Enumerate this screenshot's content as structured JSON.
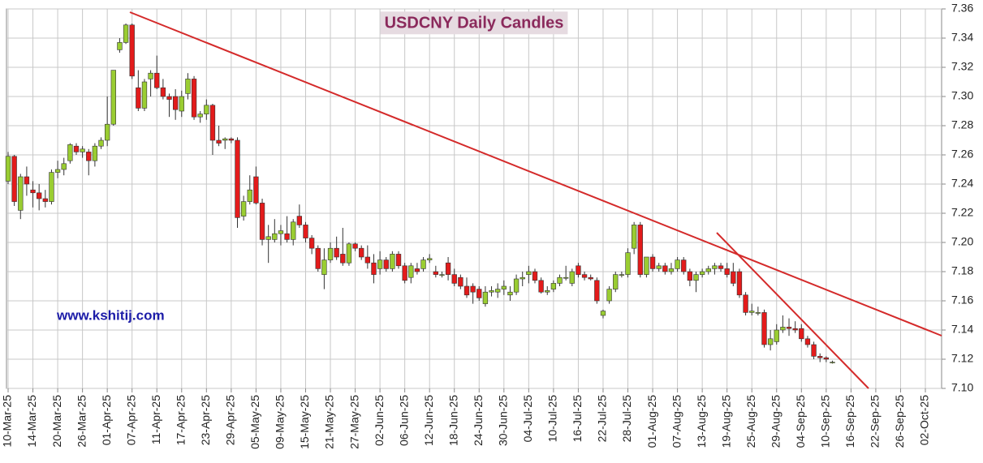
{
  "chart_data": {
    "type": "candlestick",
    "title": "USDCNY Daily Candles",
    "watermark": "www.kshitij.com",
    "up_color": "#9acd32",
    "down_color": "#e31b1b",
    "outline_color": "#333333",
    "grid": true,
    "ylim": [
      7.1,
      7.36
    ],
    "yticks": [
      {
        "value": 7.1,
        "label": "7.10"
      },
      7.12,
      7.14,
      7.16,
      7.18,
      {
        "value": 7.2,
        "label": "7.20"
      },
      7.22,
      7.24,
      7.26,
      7.28,
      {
        "value": 7.3,
        "label": "7.30"
      },
      7.32,
      7.34,
      7.36
    ],
    "categories": [
      "10-Mar-25",
      null,
      null,
      null,
      "14-Mar-25",
      null,
      null,
      null,
      "20-Mar-25",
      null,
      null,
      null,
      "26-Mar-25",
      null,
      null,
      null,
      "01-Apr-25",
      null,
      null,
      null,
      "07-Apr-25",
      null,
      null,
      null,
      "11-Apr-25",
      null,
      null,
      null,
      "17-Apr-25",
      null,
      null,
      null,
      "23-Apr-25",
      null,
      null,
      null,
      "29-Apr-25",
      null,
      null,
      null,
      "05-May-25",
      null,
      null,
      null,
      "09-May-25",
      null,
      null,
      null,
      "15-May-25",
      null,
      null,
      null,
      "21-May-25",
      null,
      null,
      null,
      "27-May-25",
      null,
      null,
      null,
      "02-Jun-25",
      null,
      null,
      null,
      "06-Jun-25",
      null,
      null,
      null,
      "12-Jun-25",
      null,
      null,
      null,
      "18-Jun-25",
      null,
      null,
      null,
      "24-Jun-25",
      null,
      null,
      null,
      "30-Jun-25",
      null,
      null,
      null,
      "04-Jul-25",
      null,
      null,
      null,
      "10-Jul-25",
      null,
      null,
      null,
      "16-Jul-25",
      null,
      null,
      null,
      "22-Jul-25",
      null,
      null,
      null,
      "28-Jul-25",
      null,
      null,
      null,
      "01-Aug-25",
      null,
      null,
      null,
      "07-Aug-25",
      null,
      null,
      null,
      "13-Aug-25",
      null,
      null,
      null,
      "19-Aug-25",
      null,
      null,
      null,
      "25-Aug-25",
      null,
      null,
      null,
      "29-Aug-25",
      null,
      null,
      null,
      "04-Sep-25",
      null,
      null,
      null,
      "10-Sep-25",
      null,
      null,
      null,
      "16-Sep-25",
      null,
      null,
      null,
      "22-Sep-25",
      null,
      null,
      null,
      "26-Sep-25",
      null,
      null,
      null,
      "02-Oct-25"
    ],
    "open": [
      7.242,
      7.259,
      7.222,
      7.245,
      7.236,
      7.234,
      7.23,
      7.228,
      7.248,
      7.25,
      7.256,
      7.266,
      7.262,
      7.262,
      7.256,
      7.266,
      7.27,
      7.281,
      7.332,
      7.337,
      7.349,
      7.306,
      7.292,
      7.312,
      7.316,
      7.306,
      7.3,
      7.3,
      7.29,
      7.302,
      7.312,
      7.286,
      7.288,
      7.294,
      7.27,
      7.27,
      7.271,
      7.27,
      7.218,
      7.228,
      7.245,
      7.227,
      7.202,
      7.202,
      7.206,
      7.206,
      7.202,
      7.218,
      7.212,
      7.203,
      7.196,
      7.178,
      7.188,
      7.196,
      7.192,
      7.186,
      7.199,
      7.196,
      7.19,
      7.186,
      7.182,
      7.188,
      7.182,
      7.192,
      7.184,
      7.176,
      7.182,
      7.182,
      7.188,
      7.18,
      7.178,
      7.186,
      7.178,
      7.176,
      7.17,
      7.17,
      7.168,
      7.158,
      7.166,
      7.166,
      7.168,
      7.164,
      7.166,
      7.175,
      7.178,
      7.18,
      7.174,
      7.166,
      7.168,
      7.172,
      7.176,
      7.172,
      7.184,
      7.178,
      7.176,
      7.174,
      7.15,
      7.16,
      7.168,
      7.178,
      7.178,
      7.196,
      7.212,
      7.178,
      7.19,
      7.182,
      7.184,
      7.18,
      7.182,
      7.188,
      7.18,
      7.174,
      7.178,
      7.18,
      7.182,
      7.184,
      7.182,
      7.18,
      7.18,
      7.164,
      7.152,
      7.152,
      7.152,
      7.13,
      7.132,
      7.14,
      7.142,
      7.141,
      7.141,
      7.134,
      7.13,
      7.122,
      7.121,
      7.118,
      null,
      null,
      null,
      null,
      null,
      null,
      null,
      null,
      null,
      null,
      null,
      null,
      null,
      null,
      null
    ],
    "high": [
      7.262,
      7.26,
      7.247,
      7.252,
      7.242,
      7.24,
      7.236,
      7.25,
      7.256,
      7.258,
      7.268,
      7.268,
      7.266,
      7.264,
      7.268,
      7.272,
      7.3,
      7.318,
      7.34,
      7.35,
      7.35,
      7.318,
      7.312,
      7.318,
      7.328,
      7.312,
      7.302,
      7.305,
      7.304,
      7.316,
      7.314,
      7.29,
      7.298,
      7.295,
      7.28,
      7.272,
      7.272,
      7.272,
      7.232,
      7.246,
      7.252,
      7.23,
      7.212,
      7.216,
      7.212,
      7.218,
      7.216,
      7.226,
      7.214,
      7.205,
      7.198,
      7.196,
      7.2,
      7.204,
      7.21,
      7.2,
      7.2,
      7.198,
      7.198,
      7.192,
      7.194,
      7.19,
      7.194,
      7.194,
      7.186,
      7.186,
      7.186,
      7.19,
      7.192,
      7.184,
      7.18,
      7.19,
      7.182,
      7.178,
      7.176,
      7.172,
      7.17,
      7.17,
      7.17,
      7.172,
      7.174,
      7.17,
      7.178,
      7.18,
      7.184,
      7.182,
      7.176,
      7.17,
      7.174,
      7.178,
      7.184,
      7.182,
      7.186,
      7.18,
      7.178,
      7.176,
      7.154,
      7.17,
      7.18,
      7.18,
      7.196,
      7.214,
      7.214,
      7.19,
      7.192,
      7.186,
      7.186,
      7.186,
      7.19,
      7.19,
      7.182,
      7.18,
      7.182,
      7.184,
      7.186,
      7.186,
      7.186,
      7.186,
      7.182,
      7.166,
      7.158,
      7.156,
      7.154,
      7.14,
      7.144,
      7.15,
      7.148,
      7.146,
      7.144,
      7.136,
      7.132,
      7.124,
      7.122,
      7.119,
      null,
      null,
      null,
      null,
      null,
      null,
      null,
      null,
      null,
      null,
      null,
      null,
      null,
      null,
      null
    ],
    "low": [
      7.24,
      7.225,
      7.216,
      7.232,
      7.224,
      7.222,
      7.224,
      7.226,
      7.244,
      7.246,
      7.254,
      7.26,
      7.258,
      7.246,
      7.252,
      7.264,
      7.266,
      7.28,
      7.33,
      7.336,
      7.312,
      7.29,
      7.29,
      7.3,
      7.305,
      7.298,
      7.286,
      7.284,
      7.286,
      7.298,
      7.284,
      7.282,
      7.284,
      7.26,
      7.266,
      7.264,
      7.268,
      7.21,
      7.215,
      7.226,
      7.226,
      7.198,
      7.186,
      7.2,
      7.198,
      7.2,
      7.198,
      7.21,
      7.2,
      7.192,
      7.18,
      7.168,
      7.186,
      7.188,
      7.184,
      7.184,
      7.194,
      7.188,
      7.182,
      7.172,
      7.178,
      7.18,
      7.18,
      7.182,
      7.172,
      7.172,
      7.178,
      7.18,
      7.186,
      7.176,
      7.176,
      7.174,
      7.17,
      7.168,
      7.162,
      7.158,
      7.16,
      7.156,
      7.163,
      7.162,
      7.164,
      7.16,
      7.164,
      7.17,
      7.172,
      7.172,
      7.165,
      7.164,
      7.166,
      7.17,
      7.174,
      7.17,
      7.176,
      7.174,
      7.174,
      7.158,
      7.148,
      7.158,
      7.166,
      7.176,
      7.176,
      7.192,
      7.176,
      7.176,
      7.18,
      7.18,
      7.178,
      7.178,
      7.18,
      7.178,
      7.17,
      7.166,
      7.176,
      7.178,
      7.178,
      7.18,
      7.176,
      7.17,
      7.162,
      7.15,
      7.15,
      7.15,
      7.128,
      7.126,
      7.13,
      7.138,
      7.136,
      7.138,
      7.132,
      7.128,
      7.12,
      7.118,
      7.118,
      7.117,
      null,
      null,
      null,
      null,
      null,
      null,
      null,
      null,
      null,
      null,
      null,
      null,
      null,
      null,
      null
    ],
    "close": [
      7.259,
      7.228,
      7.245,
      7.24,
      7.234,
      7.23,
      7.228,
      7.248,
      7.25,
      7.254,
      7.267,
      7.262,
      7.264,
      7.256,
      7.266,
      7.27,
      7.281,
      7.318,
      7.337,
      7.349,
      7.314,
      7.292,
      7.31,
      7.316,
      7.306,
      7.3,
      7.298,
      7.291,
      7.3,
      7.312,
      7.286,
      7.288,
      7.294,
      7.27,
      7.268,
      7.271,
      7.27,
      7.217,
      7.228,
      7.236,
      7.227,
      7.202,
      7.204,
      7.206,
      7.208,
      7.202,
      7.214,
      7.212,
      7.203,
      7.196,
      7.182,
      7.188,
      7.196,
      7.19,
      7.186,
      7.199,
      7.196,
      7.19,
      7.186,
      7.178,
      7.188,
      7.182,
      7.192,
      7.184,
      7.174,
      7.184,
      7.18,
      7.188,
      7.189,
      7.178,
      7.178,
      7.178,
      7.172,
      7.17,
      7.164,
      7.166,
      7.162,
      7.166,
      7.167,
      7.168,
      7.17,
      7.166,
      7.175,
      7.176,
      7.18,
      7.174,
      7.166,
      7.167,
      7.172,
      7.176,
      7.176,
      7.18,
      7.178,
      7.176,
      7.175,
      7.16,
      7.153,
      7.168,
      7.178,
      7.178,
      7.193,
      7.212,
      7.178,
      7.19,
      7.182,
      7.184,
      7.18,
      7.182,
      7.188,
      7.18,
      7.174,
      7.178,
      7.18,
      7.182,
      7.184,
      7.182,
      7.178,
      7.172,
      7.164,
      7.152,
      7.153,
      7.152,
      7.13,
      7.134,
      7.14,
      7.142,
      7.141,
      7.14,
      7.134,
      7.13,
      7.122,
      7.121,
      7.12,
      7.118,
      null,
      null,
      null,
      null,
      null,
      null,
      null,
      null,
      null,
      null,
      null,
      null,
      null,
      null,
      null
    ]
  }
}
